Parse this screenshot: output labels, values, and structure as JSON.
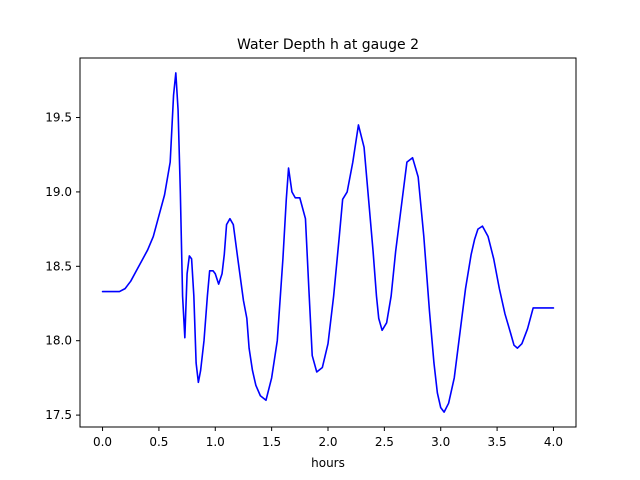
{
  "chart_data": {
    "type": "line",
    "title": "Water Depth h at gauge 2",
    "xlabel": "hours",
    "ylabel": "",
    "xlim": [
      -0.2,
      4.2
    ],
    "ylim": [
      17.42,
      19.9
    ],
    "xticks": [
      0.0,
      0.5,
      1.0,
      1.5,
      2.0,
      2.5,
      3.0,
      3.5,
      4.0
    ],
    "xtick_labels": [
      "0.0",
      "0.5",
      "1.0",
      "1.5",
      "2.0",
      "2.5",
      "3.0",
      "3.5",
      "4.0"
    ],
    "yticks": [
      17.5,
      18.0,
      18.5,
      19.0,
      19.5
    ],
    "ytick_labels": [
      "17.5",
      "18.0",
      "18.5",
      "19.0",
      "19.5"
    ],
    "grid": false,
    "colors": {
      "line": "#0000ff"
    },
    "series": [
      {
        "x": [
          0.0,
          0.05,
          0.1,
          0.15,
          0.2,
          0.25,
          0.3,
          0.35,
          0.4,
          0.45,
          0.5,
          0.55,
          0.6,
          0.63,
          0.65,
          0.67,
          0.69,
          0.71,
          0.73,
          0.75,
          0.77,
          0.79,
          0.81,
          0.83,
          0.85,
          0.87,
          0.9,
          0.93,
          0.95,
          0.98,
          1.0,
          1.03,
          1.06,
          1.08,
          1.1,
          1.13,
          1.16,
          1.2,
          1.25,
          1.28,
          1.3,
          1.33,
          1.36,
          1.4,
          1.45,
          1.5,
          1.55,
          1.6,
          1.63,
          1.65,
          1.68,
          1.71,
          1.75,
          1.8,
          1.83,
          1.86,
          1.9,
          1.95,
          2.0,
          2.05,
          2.1,
          2.13,
          2.17,
          2.22,
          2.27,
          2.32,
          2.36,
          2.4,
          2.43,
          2.45,
          2.48,
          2.52,
          2.56,
          2.6,
          2.65,
          2.7,
          2.75,
          2.8,
          2.85,
          2.9,
          2.94,
          2.97,
          3.0,
          3.03,
          3.07,
          3.12,
          3.17,
          3.22,
          3.27,
          3.3,
          3.33,
          3.37,
          3.42,
          3.47,
          3.52,
          3.57,
          3.62,
          3.65,
          3.68,
          3.72,
          3.77,
          3.82,
          3.86,
          3.9,
          3.93,
          3.96,
          3.98,
          4.0
        ],
        "y": [
          18.33,
          18.33,
          18.33,
          18.33,
          18.35,
          18.4,
          18.47,
          18.54,
          18.61,
          18.7,
          18.84,
          18.98,
          19.2,
          19.65,
          19.8,
          19.55,
          19.0,
          18.3,
          18.02,
          18.45,
          18.57,
          18.55,
          18.3,
          17.85,
          17.72,
          17.8,
          18.0,
          18.3,
          18.47,
          18.47,
          18.45,
          18.38,
          18.45,
          18.58,
          18.78,
          18.82,
          18.78,
          18.55,
          18.27,
          18.15,
          17.95,
          17.8,
          17.7,
          17.63,
          17.6,
          17.75,
          18.0,
          18.55,
          18.95,
          19.16,
          19.0,
          18.96,
          18.96,
          18.82,
          18.35,
          17.9,
          17.79,
          17.82,
          17.98,
          18.3,
          18.7,
          18.95,
          19.0,
          19.2,
          19.45,
          19.3,
          18.95,
          18.6,
          18.3,
          18.15,
          18.07,
          18.12,
          18.3,
          18.6,
          18.9,
          19.2,
          19.23,
          19.1,
          18.7,
          18.2,
          17.85,
          17.65,
          17.55,
          17.52,
          17.58,
          17.75,
          18.05,
          18.35,
          18.58,
          18.68,
          18.75,
          18.77,
          18.7,
          18.55,
          18.35,
          18.18,
          18.05,
          17.97,
          17.95,
          17.98,
          18.08,
          18.22,
          18.22,
          18.22,
          18.22,
          18.22,
          18.22,
          18.22
        ]
      }
    ]
  }
}
